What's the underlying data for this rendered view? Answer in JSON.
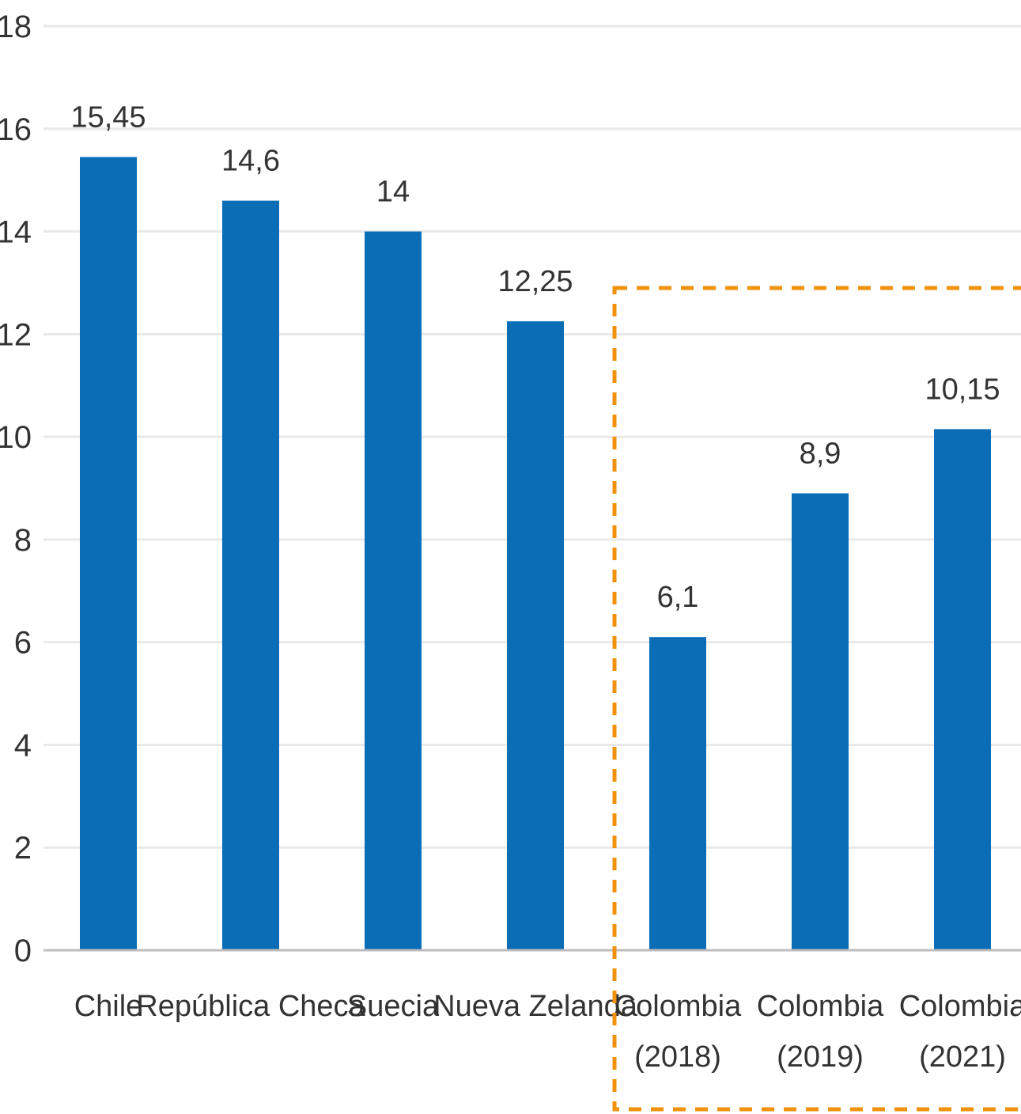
{
  "chart_data": {
    "type": "bar",
    "title": "",
    "xlabel": "",
    "ylabel": "",
    "ylim": [
      0,
      18
    ],
    "yticks": [
      0,
      2,
      4,
      6,
      8,
      10,
      12,
      14,
      16,
      18
    ],
    "grid": true,
    "bar_color": "#0a6db6",
    "highlight_color": "#f0920b",
    "categories": [
      [
        "Chile"
      ],
      [
        "República Checa"
      ],
      [
        "Suecia"
      ],
      [
        "Nueva Zelanda"
      ],
      [
        "Colombia",
        "(2018)"
      ],
      [
        "Colombia",
        "(2019)"
      ],
      [
        "Colombia",
        "(2021)"
      ]
    ],
    "values": [
      15.45,
      14.6,
      14,
      12.25,
      6.1,
      8.9,
      10.15
    ],
    "value_labels": [
      "15,45",
      "14,6",
      "14",
      "12,25",
      "6,1",
      "8,9",
      "10,15"
    ],
    "highlight": {
      "style": "dashed-box",
      "category_range": [
        4,
        6
      ]
    }
  }
}
